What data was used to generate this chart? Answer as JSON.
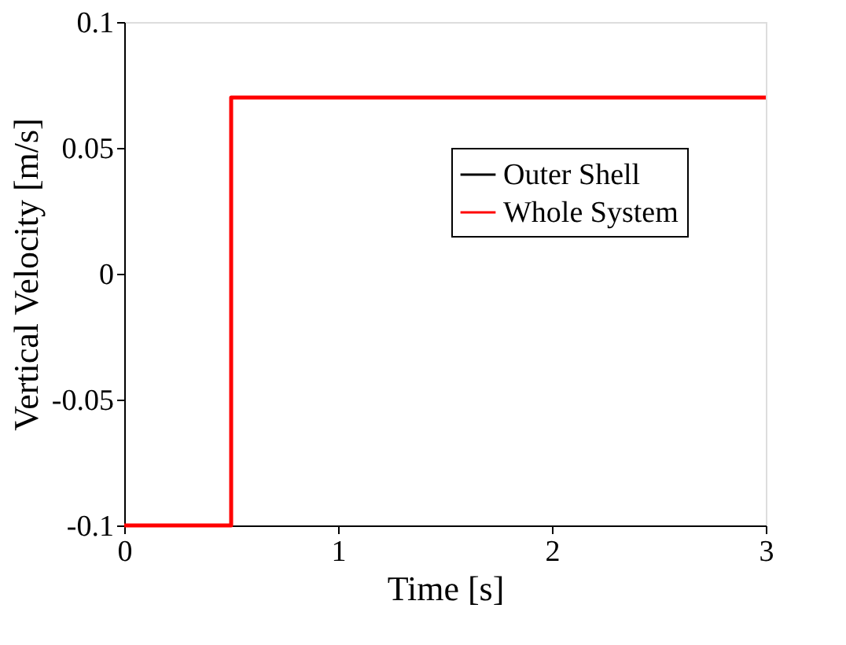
{
  "chart_data": {
    "type": "line",
    "xlabel": "Time [s]",
    "ylabel": "Vertical Velocity [m/s]",
    "x": [
      0,
      0.5,
      0.5,
      3
    ],
    "series": [
      {
        "name": "Outer Shell",
        "color": "#000000",
        "values": [
          null,
          null,
          null,
          null
        ]
      },
      {
        "name": "Whole System",
        "color": "#ff0000",
        "values": [
          -0.1,
          -0.1,
          0.07,
          0.07
        ]
      }
    ],
    "xlim": [
      0,
      3
    ],
    "xticks": [
      0,
      1,
      2,
      3
    ],
    "ylim": [
      -0.1,
      0.1
    ],
    "yticks": [
      -0.1,
      -0.05,
      0,
      0.05,
      0.1
    ],
    "grid": false,
    "legend": "top right",
    "line_style": "solid"
  }
}
